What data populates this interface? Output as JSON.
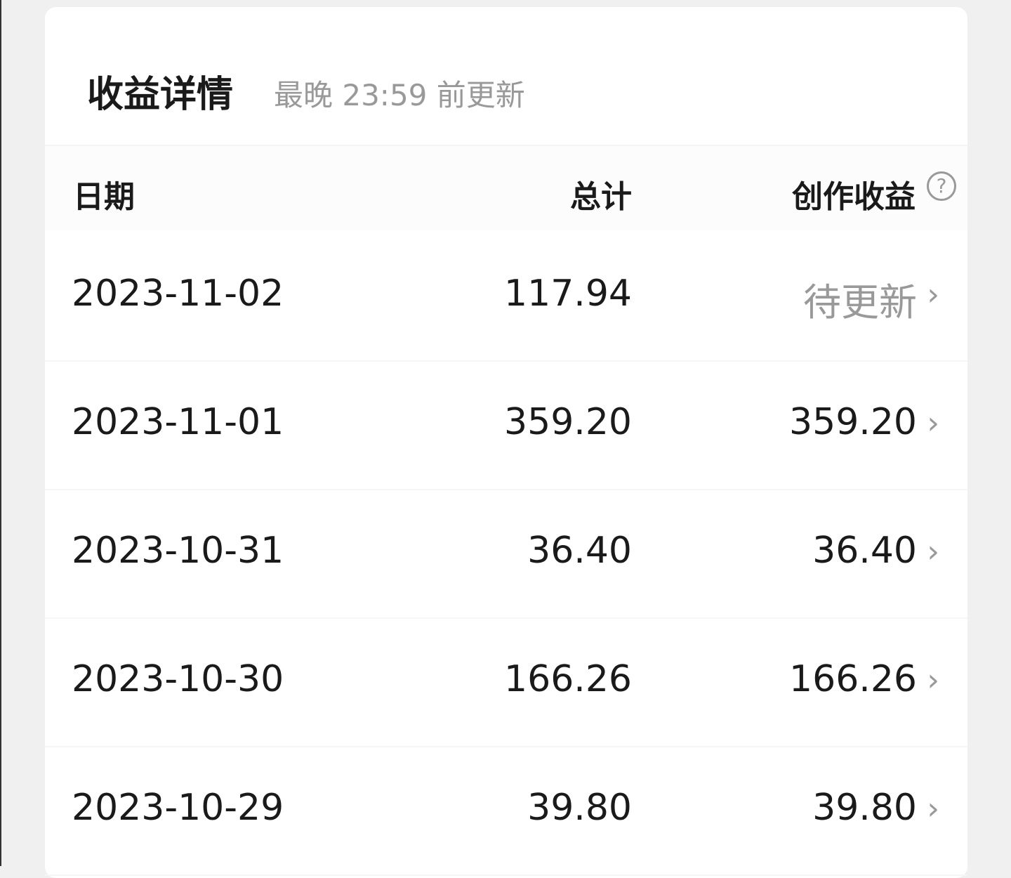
{
  "header": {
    "title": "收益详情",
    "subtitle": "最晚 23:59 前更新"
  },
  "columns": {
    "date": "日期",
    "total": "总计",
    "creation": "创作收益",
    "help_icon": "question-circle-icon"
  },
  "rows": [
    {
      "date": "2023-11-02",
      "total": "117.94",
      "creation": "待更新",
      "pending": true
    },
    {
      "date": "2023-11-01",
      "total": "359.20",
      "creation": "359.20"
    },
    {
      "date": "2023-10-31",
      "total": "36.40",
      "creation": "36.40"
    },
    {
      "date": "2023-10-30",
      "total": "166.26",
      "creation": "166.26"
    },
    {
      "date": "2023-10-29",
      "total": "39.80",
      "creation": "39.80"
    }
  ]
}
